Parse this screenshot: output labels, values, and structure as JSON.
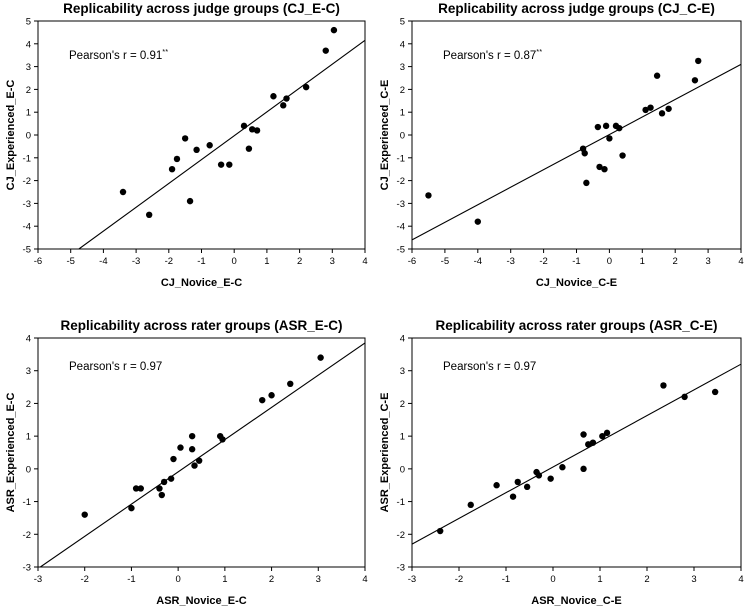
{
  "chart_data": [
    {
      "type": "scatter",
      "title": "Replicability across judge groups (CJ_E-C)",
      "xlabel": "CJ_Novice_E-C",
      "ylabel": "CJ_Experienced_E-C",
      "xlim": [
        -6,
        4
      ],
      "ylim": [
        -5,
        5
      ],
      "xticks": [
        "-6",
        "-5",
        "-4",
        "-3",
        "-2",
        "-1",
        "0",
        "1",
        "2",
        "3",
        "4"
      ],
      "yticks": [
        "-5",
        "-4",
        "-3",
        "-2",
        "-1",
        "0",
        "1",
        "2",
        "3",
        "4",
        "5"
      ],
      "annotation": "Pearson's r = 0.91",
      "annotation_sup": "**",
      "points": [
        [
          -3.4,
          -2.5
        ],
        [
          -2.6,
          -3.5
        ],
        [
          -1.9,
          -1.5
        ],
        [
          -1.75,
          -1.05
        ],
        [
          -1.5,
          -0.15
        ],
        [
          -1.35,
          -2.9
        ],
        [
          -1.15,
          -0.65
        ],
        [
          -0.75,
          -0.45
        ],
        [
          -0.4,
          -1.3
        ],
        [
          -0.15,
          -1.3
        ],
        [
          0.3,
          0.4
        ],
        [
          0.45,
          -0.6
        ],
        [
          0.55,
          0.25
        ],
        [
          0.7,
          0.2
        ],
        [
          1.2,
          1.7
        ],
        [
          1.5,
          1.3
        ],
        [
          1.6,
          1.6
        ],
        [
          2.2,
          2.1
        ],
        [
          2.8,
          3.7
        ],
        [
          3.05,
          4.6
        ]
      ],
      "fit_line": {
        "x": [
          -4.75,
          4
        ],
        "y": [
          -5,
          4.15
        ]
      },
      "grid": false
    },
    {
      "type": "scatter",
      "title": "Replicability across judge groups (CJ_C-E)",
      "xlabel": "CJ_Novice_C-E",
      "ylabel": "CJ_Experienced_C-E",
      "xlim": [
        -6,
        4
      ],
      "ylim": [
        -5,
        5
      ],
      "xticks": [
        "-6",
        "-5",
        "-4",
        "-3",
        "-2",
        "-1",
        "0",
        "1",
        "2",
        "3",
        "4"
      ],
      "yticks": [
        "-5",
        "-4",
        "-3",
        "-2",
        "-1",
        "0",
        "1",
        "2",
        "3",
        "4",
        "5"
      ],
      "annotation": "Pearson's r = 0.87",
      "annotation_sup": "**",
      "points": [
        [
          -5.5,
          -2.65
        ],
        [
          -4.0,
          -3.8
        ],
        [
          -0.8,
          -0.6
        ],
        [
          -0.75,
          -0.8
        ],
        [
          -0.7,
          -2.1
        ],
        [
          -0.35,
          0.35
        ],
        [
          -0.3,
          -1.4
        ],
        [
          -0.15,
          -1.5
        ],
        [
          -0.1,
          0.4
        ],
        [
          0.0,
          -0.15
        ],
        [
          0.2,
          0.4
        ],
        [
          0.3,
          0.3
        ],
        [
          0.4,
          -0.9
        ],
        [
          1.1,
          1.1
        ],
        [
          1.25,
          1.2
        ],
        [
          1.45,
          2.6
        ],
        [
          1.6,
          0.95
        ],
        [
          1.8,
          1.15
        ],
        [
          2.6,
          2.4
        ],
        [
          2.7,
          3.25
        ]
      ],
      "fit_line": {
        "x": [
          -6,
          4
        ],
        "y": [
          -4.6,
          3.1
        ]
      },
      "grid": false
    },
    {
      "type": "scatter",
      "title": "Replicability across rater groups (ASR_E-C)",
      "xlabel": "ASR_Novice_E-C",
      "ylabel": "ASR_Experienced_E-C",
      "xlim": [
        -3,
        4
      ],
      "ylim": [
        -3,
        4
      ],
      "xticks": [
        "-3",
        "-2",
        "-1",
        "0",
        "1",
        "2",
        "3",
        "4"
      ],
      "yticks": [
        "-3",
        "-2",
        "-1",
        "0",
        "1",
        "2",
        "3",
        "4"
      ],
      "annotation": "Pearson's r = 0.97",
      "annotation_sup": "",
      "points": [
        [
          -2.0,
          -1.4
        ],
        [
          -1.0,
          -1.2
        ],
        [
          -0.9,
          -0.6
        ],
        [
          -0.8,
          -0.6
        ],
        [
          -0.4,
          -0.6
        ],
        [
          -0.35,
          -0.8
        ],
        [
          -0.3,
          -0.4
        ],
        [
          -0.15,
          -0.3
        ],
        [
          -0.1,
          0.3
        ],
        [
          0.05,
          0.65
        ],
        [
          0.3,
          1.0
        ],
        [
          0.3,
          0.6
        ],
        [
          0.35,
          0.1
        ],
        [
          0.45,
          0.25
        ],
        [
          0.9,
          1.0
        ],
        [
          0.95,
          0.9
        ],
        [
          1.8,
          2.1
        ],
        [
          2.0,
          2.25
        ],
        [
          2.4,
          2.6
        ],
        [
          3.05,
          3.4
        ]
      ],
      "fit_line": {
        "x": [
          -2.95,
          4
        ],
        "y": [
          -3,
          3.85
        ]
      },
      "grid": false
    },
    {
      "type": "scatter",
      "title": "Replicability across rater groups (ASR_C-E)",
      "xlabel": "ASR_Novice_C-E",
      "ylabel": "ASR_Experienced_C-E",
      "xlim": [
        -3,
        4
      ],
      "ylim": [
        -3,
        4
      ],
      "xticks": [
        "-3",
        "-2",
        "-1",
        "0",
        "1",
        "2",
        "3",
        "4"
      ],
      "yticks": [
        "-3",
        "-2",
        "-1",
        "0",
        "1",
        "2",
        "3",
        "4"
      ],
      "annotation": "Pearson's r = 0.97",
      "annotation_sup": "",
      "points": [
        [
          -2.4,
          -1.9
        ],
        [
          -1.75,
          -1.1
        ],
        [
          -1.2,
          -0.5
        ],
        [
          -0.85,
          -0.85
        ],
        [
          -0.75,
          -0.4
        ],
        [
          -0.55,
          -0.55
        ],
        [
          -0.35,
          -0.1
        ],
        [
          -0.3,
          -0.2
        ],
        [
          -0.05,
          -0.3
        ],
        [
          0.2,
          0.05
        ],
        [
          0.65,
          1.05
        ],
        [
          0.65,
          0.0
        ],
        [
          0.75,
          0.75
        ],
        [
          0.85,
          0.8
        ],
        [
          1.05,
          1.0
        ],
        [
          1.15,
          1.1
        ],
        [
          2.35,
          2.55
        ],
        [
          2.8,
          2.2
        ],
        [
          3.45,
          2.35
        ]
      ],
      "fit_line": {
        "x": [
          -3,
          4
        ],
        "y": [
          -2.3,
          3.2
        ]
      },
      "grid": false
    }
  ]
}
